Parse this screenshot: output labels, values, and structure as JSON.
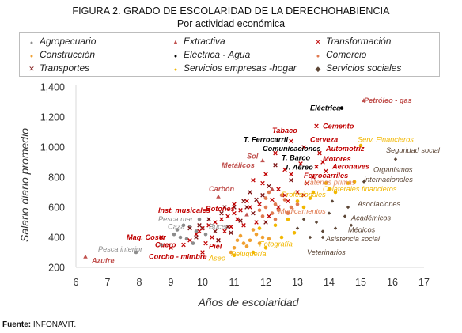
{
  "title": "FIGURA 2. GRADO DE ESCOLARIDAD DE LA DERECHOHABIENCIA",
  "subtitle": "Por actividad económica",
  "source_label": "Fuente:",
  "source_text": "INFONAVIT.",
  "chart_data": {
    "type": "scatter",
    "xlabel": "Años de escolaridad",
    "ylabel": "Salario diario promedio",
    "xlim": [
      6,
      17
    ],
    "ylim": [
      200,
      1400
    ],
    "xticks": [
      "6",
      "7",
      "8",
      "9",
      "10",
      "11",
      "12",
      "13",
      "14",
      "15",
      "16",
      "17"
    ],
    "yticks": [
      "200",
      "400",
      "600",
      "800",
      "1,000",
      "1,200",
      "1,400"
    ],
    "legend_position": "top",
    "series": [
      {
        "name": "Agropecuario",
        "color": "#8c8c8c",
        "marker": "circle",
        "points": [
          [
            7.9,
            300
          ],
          [
            9.1,
            420
          ],
          [
            9.4,
            480
          ],
          [
            9.6,
            470
          ],
          [
            9.8,
            440
          ],
          [
            9.9,
            520
          ],
          [
            9.3,
            400
          ],
          [
            8.7,
            350
          ],
          [
            9.5,
            390
          ],
          [
            10.0,
            460
          ],
          [
            9.7,
            360
          ],
          [
            9.2,
            450
          ],
          [
            10.1,
            420
          ]
        ]
      },
      {
        "name": "Extractiva",
        "color": "#c0504d",
        "marker": "triangle",
        "points": [
          [
            6.3,
            270
          ],
          [
            10.5,
            670
          ],
          [
            11.9,
            910
          ],
          [
            15.1,
            1310
          ],
          [
            11.4,
            550
          ],
          [
            12.2,
            720
          ]
        ]
      },
      {
        "name": "Transformación",
        "color": "#c00000",
        "marker": "x",
        "points": [
          [
            12.8,
            1040
          ],
          [
            13.6,
            1140
          ],
          [
            13.2,
            1000
          ],
          [
            13.7,
            960
          ],
          [
            13.8,
            900
          ],
          [
            13.9,
            840
          ],
          [
            13.6,
            870
          ],
          [
            13.1,
            890
          ],
          [
            12.6,
            850
          ],
          [
            12.3,
            960
          ],
          [
            12.0,
            820
          ],
          [
            11.6,
            780
          ],
          [
            11.9,
            760
          ],
          [
            12.4,
            720
          ],
          [
            12.6,
            680
          ],
          [
            12.2,
            650
          ],
          [
            11.8,
            620
          ],
          [
            11.5,
            600
          ],
          [
            11.2,
            580
          ],
          [
            11.0,
            560
          ],
          [
            10.8,
            540
          ],
          [
            10.6,
            520
          ],
          [
            10.4,
            500
          ],
          [
            10.2,
            480
          ],
          [
            10.0,
            460
          ],
          [
            9.9,
            440
          ],
          [
            9.8,
            420
          ],
          [
            10.3,
            400
          ],
          [
            10.5,
            380
          ],
          [
            10.1,
            360
          ],
          [
            9.6,
            380
          ],
          [
            9.4,
            350
          ],
          [
            9.0,
            330
          ],
          [
            8.7,
            400
          ],
          [
            10.0,
            300
          ],
          [
            10.7,
            440
          ],
          [
            11.3,
            480
          ],
          [
            11.7,
            500
          ],
          [
            12.1,
            540
          ],
          [
            12.4,
            600
          ],
          [
            12.7,
            640
          ],
          [
            13.0,
            700
          ],
          [
            13.3,
            760
          ],
          [
            13.5,
            800
          ],
          [
            11.4,
            640
          ],
          [
            11.0,
            620
          ],
          [
            12.8,
            820
          ],
          [
            13.2,
            680
          ],
          [
            11.1,
            520
          ],
          [
            10.9,
            470
          ]
        ]
      },
      {
        "name": "Construcción",
        "color": "#f0a030",
        "marker": "circle",
        "points": [
          [
            11.0,
            330
          ],
          [
            11.3,
            360
          ],
          [
            11.5,
            380
          ],
          [
            11.8,
            360
          ],
          [
            11.7,
            420
          ],
          [
            11.2,
            410
          ],
          [
            11.6,
            450
          ],
          [
            11.9,
            400
          ],
          [
            12.1,
            390
          ],
          [
            11.4,
            340
          ],
          [
            10.9,
            300
          ],
          [
            11.1,
            380
          ]
        ]
      },
      {
        "name": "Eléctrica - Agua",
        "color": "#000000",
        "marker": "circle",
        "points": [
          [
            14.4,
            1260
          ]
        ]
      },
      {
        "name": "Comercio",
        "color": "#e07a50",
        "marker": "circle",
        "points": [
          [
            12.0,
            600
          ],
          [
            12.3,
            620
          ],
          [
            12.6,
            650
          ],
          [
            12.8,
            600
          ],
          [
            12.2,
            560
          ],
          [
            11.9,
            540
          ],
          [
            12.5,
            680
          ],
          [
            12.1,
            700
          ],
          [
            12.4,
            580
          ],
          [
            12.7,
            560
          ],
          [
            11.8,
            580
          ],
          [
            12.3,
            520
          ],
          [
            13.0,
            620
          ],
          [
            12.0,
            660
          ]
        ]
      },
      {
        "name": "Transportes",
        "color": "#7a1010",
        "marker": "x",
        "points": [
          [
            9.6,
            460
          ],
          [
            9.8,
            400
          ],
          [
            10.2,
            520
          ],
          [
            10.6,
            560
          ],
          [
            11.0,
            600
          ],
          [
            11.3,
            640
          ],
          [
            11.6,
            560
          ],
          [
            12.0,
            500
          ],
          [
            10.4,
            440
          ],
          [
            10.8,
            470
          ],
          [
            11.2,
            510
          ],
          [
            9.9,
            480
          ],
          [
            10.7,
            600
          ],
          [
            11.5,
            700
          ],
          [
            12.1,
            740
          ],
          [
            12.8,
            780
          ],
          [
            12.3,
            880
          ],
          [
            11.9,
            680
          ],
          [
            11.4,
            600
          ],
          [
            10.5,
            380
          ],
          [
            10.9,
            430
          ],
          [
            11.7,
            650
          ]
        ]
      },
      {
        "name": "Servicios empresas -hogar",
        "color": "#f2b700",
        "marker": "circle",
        "points": [
          [
            11.6,
            300
          ],
          [
            12.0,
            330
          ],
          [
            12.5,
            400
          ],
          [
            13.2,
            600
          ],
          [
            13.5,
            700
          ],
          [
            13.9,
            760
          ],
          [
            14.2,
            700
          ],
          [
            15.0,
            1010
          ],
          [
            14.6,
            760
          ],
          [
            13.0,
            640
          ],
          [
            11.0,
            280
          ],
          [
            12.7,
            520
          ],
          [
            13.4,
            660
          ],
          [
            14.0,
            720
          ],
          [
            11.8,
            460
          ],
          [
            12.3,
            480
          ],
          [
            14.8,
            770
          ],
          [
            12.9,
            430
          ]
        ]
      },
      {
        "name": "Servicios sociales",
        "color": "#5c4636",
        "marker": "diamond",
        "points": [
          [
            16.1,
            920
          ],
          [
            15.1,
            770
          ],
          [
            13.0,
            460
          ],
          [
            13.4,
            400
          ],
          [
            14.5,
            540
          ],
          [
            14.7,
            480
          ],
          [
            14.6,
            600
          ],
          [
            13.8,
            400
          ],
          [
            13.8,
            440
          ],
          [
            14.2,
            460
          ],
          [
            13.6,
            500
          ],
          [
            14.0,
            560
          ],
          [
            14.1,
            640
          ],
          [
            13.2,
            520
          ]
        ]
      }
    ],
    "annotations": [
      {
        "text": "Petróleo - gas",
        "x": 15.1,
        "y": 1310,
        "color": "#c0504d"
      },
      {
        "text": "Eléctrica",
        "x": 13.4,
        "y": 1260,
        "color": "#000000"
      },
      {
        "text": "Cemento",
        "x": 13.8,
        "y": 1140,
        "color": "#c00000"
      },
      {
        "text": "Tabaco",
        "x": 12.2,
        "y": 1110,
        "color": "#c00000"
      },
      {
        "text": "T. Ferrocarril",
        "x": 11.3,
        "y": 1050,
        "color": "#000000"
      },
      {
        "text": "Cerveza",
        "x": 13.4,
        "y": 1050,
        "color": "#c00000"
      },
      {
        "text": "Serv. Financieros",
        "x": 14.9,
        "y": 1050,
        "color": "#f2b700"
      },
      {
        "text": "Comunicaciones",
        "x": 11.9,
        "y": 990,
        "color": "#000000"
      },
      {
        "text": "Automotriz",
        "x": 13.9,
        "y": 990,
        "color": "#c00000"
      },
      {
        "text": "Seguridad social",
        "x": 15.8,
        "y": 980,
        "color": "#5c4636"
      },
      {
        "text": "Sol",
        "x": 11.4,
        "y": 940,
        "color": "#c0504d"
      },
      {
        "text": "T. Barco",
        "x": 12.5,
        "y": 930,
        "color": "#000000"
      },
      {
        "text": "Motores",
        "x": 13.8,
        "y": 920,
        "color": "#c00000"
      },
      {
        "text": "Metálicos",
        "x": 10.6,
        "y": 880,
        "color": "#c0504d"
      },
      {
        "text": "T. Aéreo",
        "x": 12.6,
        "y": 865,
        "color": "#000000"
      },
      {
        "text": "Aeronaves",
        "x": 14.1,
        "y": 870,
        "color": "#c00000"
      },
      {
        "text": "Organismos",
        "x": 15.4,
        "y": 850,
        "color": "#5c4636"
      },
      {
        "text": "Ferrocarriles",
        "x": 13.2,
        "y": 810,
        "color": "#c00000"
      },
      {
        "text": "internacionales",
        "x": 15.1,
        "y": 785,
        "color": "#5c4636"
      },
      {
        "text": "Materias primas",
        "x": 13.2,
        "y": 765,
        "color": "#e07a50"
      },
      {
        "text": "Colaterales financieros",
        "x": 13.8,
        "y": 720,
        "color": "#f2b700"
      },
      {
        "text": "Carbón",
        "x": 10.2,
        "y": 720,
        "color": "#c0504d"
      },
      {
        "text": "Profesionales",
        "x": 12.5,
        "y": 685,
        "color": "#f2b700"
      },
      {
        "text": "Asociaciones",
        "x": 14.9,
        "y": 620,
        "color": "#5c4636"
      },
      {
        "text": "Inst. musicales",
        "x": 8.6,
        "y": 580,
        "color": "#c00000"
      },
      {
        "text": "Botones",
        "x": 10.1,
        "y": 590,
        "color": "#c00000"
      },
      {
        "text": "Medicamentos",
        "x": 12.4,
        "y": 575,
        "color": "#e07a50"
      },
      {
        "text": "Pesca mar",
        "x": 8.6,
        "y": 520,
        "color": "#8c8c8c"
      },
      {
        "text": "Académicos",
        "x": 14.7,
        "y": 530,
        "color": "#5c4636"
      },
      {
        "text": "Caza",
        "x": 8.9,
        "y": 470,
        "color": "#8c8c8c"
      },
      {
        "text": "Buceo",
        "x": 10.2,
        "y": 470,
        "color": "#8c8c8c"
      },
      {
        "text": "Médicos",
        "x": 14.6,
        "y": 450,
        "color": "#5c4636"
      },
      {
        "text": "Maq. Coser",
        "x": 7.6,
        "y": 400,
        "color": "#c00000"
      },
      {
        "text": "Asistencia social",
        "x": 13.9,
        "y": 390,
        "color": "#5c4636"
      },
      {
        "text": "Cuero",
        "x": 8.5,
        "y": 350,
        "color": "#c00000"
      },
      {
        "text": "Piel",
        "x": 10.2,
        "y": 340,
        "color": "#c00000"
      },
      {
        "text": "Fotografía",
        "x": 11.8,
        "y": 355,
        "color": "#f2b700"
      },
      {
        "text": "Pesca interior",
        "x": 6.7,
        "y": 320,
        "color": "#8c8c8c"
      },
      {
        "text": "Veterinarios",
        "x": 13.3,
        "y": 300,
        "color": "#5c4636"
      },
      {
        "text": "Peluquería",
        "x": 10.9,
        "y": 290,
        "color": "#f2b700"
      },
      {
        "text": "Corcho - mimbre",
        "x": 8.3,
        "y": 270,
        "color": "#c00000"
      },
      {
        "text": "Aseo",
        "x": 10.2,
        "y": 260,
        "color": "#f2b700"
      },
      {
        "text": "Azufre",
        "x": 6.5,
        "y": 245,
        "color": "#c0504d"
      }
    ]
  }
}
